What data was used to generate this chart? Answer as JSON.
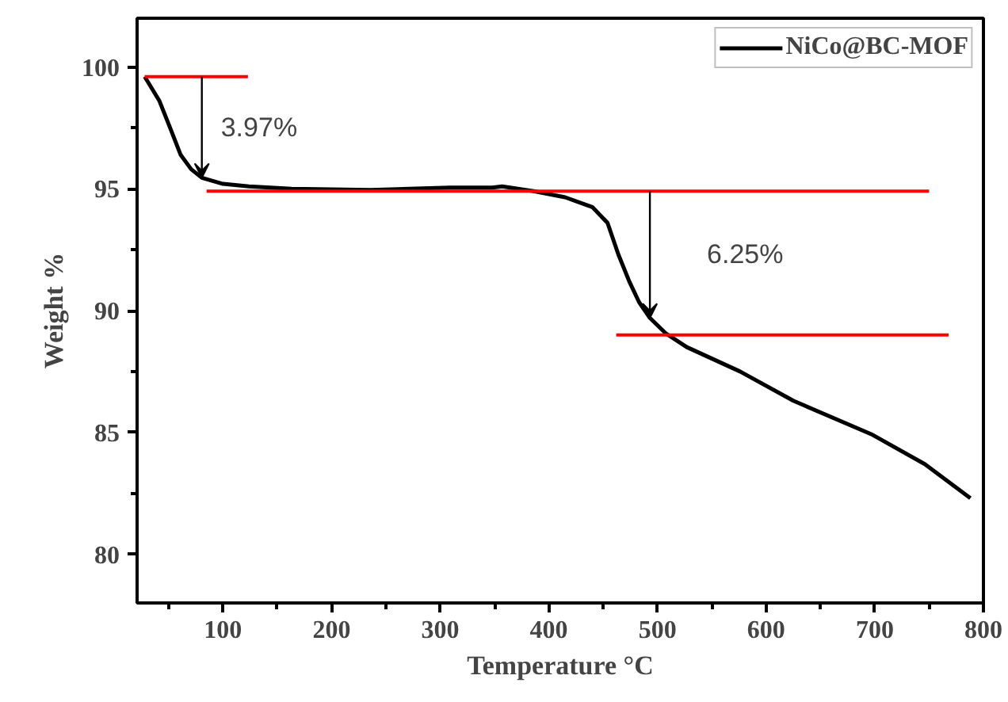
{
  "chart_data": {
    "type": "line",
    "xlabel": "Temperature °C",
    "ylabel": "Weight %",
    "xlim": [
      21,
      800
    ],
    "ylim": [
      78,
      102
    ],
    "xticks": [
      {
        "value": 50,
        "label": null
      },
      100,
      {
        "value": 150,
        "label": null
      },
      200,
      {
        "value": 250,
        "label": null
      },
      300,
      {
        "value": 350,
        "label": null
      },
      400,
      {
        "value": 450,
        "label": null
      },
      500,
      {
        "value": 550,
        "label": null
      },
      600,
      {
        "value": 650,
        "label": null
      },
      700,
      {
        "value": 750,
        "label": null
      },
      800
    ],
    "yticks": [
      80,
      {
        "value": 82.5,
        "label": null
      },
      85,
      {
        "value": 87.5,
        "label": null
      },
      90,
      {
        "value": 92.5,
        "label": null
      },
      95,
      {
        "value": 97.5,
        "label": null
      },
      100
    ],
    "grid": false,
    "legend": "top right",
    "line_style": "solid",
    "series": [
      {
        "name": "NiCo@BC-MOF",
        "color": "#000000",
        "x": [
          28,
          41.6,
          51.4,
          61,
          70.8,
          80.6,
          100,
          124,
          163,
          236,
          309,
          348,
          357,
          386,
          415,
          440,
          454,
          464,
          474,
          483,
          493,
          508,
          527,
          576,
          625,
          698,
          746,
          788
        ],
        "values": [
          99.6,
          98.6,
          97.5,
          96.4,
          95.8,
          95.45,
          95.2,
          95.1,
          95.0,
          94.95,
          95.05,
          95.05,
          95.1,
          94.9,
          94.65,
          94.25,
          93.6,
          92.3,
          91.2,
          90.35,
          89.7,
          89.05,
          88.5,
          87.5,
          86.3,
          84.9,
          83.7,
          82.3
        ]
      },
      {
        "color": "#ff0000",
        "x": [
          28,
          123
        ],
        "values": [
          99.6,
          99.6
        ]
      },
      {
        "color": "#ff0000",
        "x": [
          85,
          750
        ],
        "values": [
          94.9,
          94.9
        ]
      },
      {
        "color": "#ff0000",
        "x": [
          462,
          768
        ],
        "values": [
          89.0,
          89.0
        ]
      }
    ],
    "annotations": [
      {
        "text": "3.97%",
        "x": 80.6,
        "y": 95.45
      },
      {
        "text": "6.25%",
        "x": 493,
        "y": 89.7
      }
    ]
  }
}
